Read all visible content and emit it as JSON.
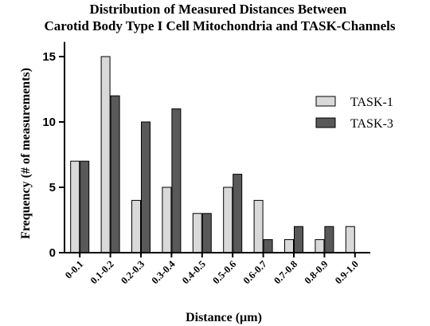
{
  "chart_data": {
    "type": "bar",
    "title": "Distribution of Measured Distances Between\nCarotid Body Type I Cell Mitochondria and TASK-Channels",
    "xlabel": "Distance (µm)",
    "ylabel": "Frequency (# of measurements)",
    "ylim": [
      0,
      16
    ],
    "yticks": [
      0,
      5,
      10,
      15
    ],
    "categories": [
      "0-0.1",
      "0.1-0.2",
      "0.2-0.3",
      "0.3-0.4",
      "0.4-0.5",
      "0.5-0.6",
      "0.6-0.7",
      "0.7-0.8",
      "0.8-0.9",
      "0.9-1.0"
    ],
    "series": [
      {
        "name": "TASK-1",
        "color": "#d9d9d9",
        "values": [
          7,
          15,
          4,
          5,
          3,
          5,
          4,
          1,
          1,
          2
        ]
      },
      {
        "name": "TASK-3",
        "color": "#595959",
        "values": [
          7,
          12,
          10,
          11,
          3,
          6,
          1,
          2,
          2,
          0
        ]
      }
    ],
    "legend": "right",
    "grid": false
  }
}
